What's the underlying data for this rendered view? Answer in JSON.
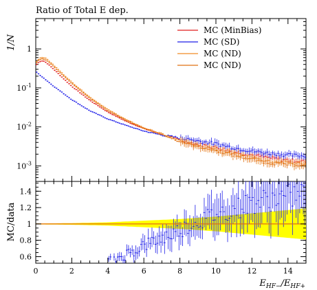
{
  "page": {
    "title": "Ratio of Total E dep."
  },
  "legend": {
    "position": "top-right",
    "entries": [
      {
        "label": "MC (MinBias)",
        "color": "#e01c1c"
      },
      {
        "label": "MC (SD)",
        "color": "#1c1ce8"
      },
      {
        "label": "MC (ND)",
        "color": "#f08a24"
      },
      {
        "label": "MC (ND)",
        "color": "#e07010"
      }
    ]
  },
  "chart_data": [
    {
      "type": "scatter",
      "title": "Ratio of Total E dep.",
      "ylabel": "1/N",
      "xlabel": "E_HF-/E_HF+",
      "y_scale": "log",
      "xlim": [
        0,
        15
      ],
      "ylim": [
        0.0004,
        6
      ],
      "yticks": [
        "10^-3",
        "10^-2",
        "10^-1",
        "1"
      ],
      "x_bin_width": 0.1,
      "x_range": [
        0.0,
        15.0
      ],
      "series": [
        {
          "name": "MC (MinBias)",
          "color": "#e01c1c",
          "points": [
            [
              0.05,
              0.4
            ],
            [
              0.2,
              0.47
            ],
            [
              0.4,
              0.5
            ],
            [
              0.6,
              0.44
            ],
            [
              1,
              0.3
            ],
            [
              1.5,
              0.18
            ],
            [
              2,
              0.11
            ],
            [
              3,
              0.048
            ],
            [
              4,
              0.024
            ],
            [
              5,
              0.014
            ],
            [
              6,
              0.009
            ],
            [
              7,
              0.0065
            ],
            [
              8,
              0.0046
            ],
            [
              9,
              0.0036
            ],
            [
              10,
              0.003
            ],
            [
              11,
              0.0023
            ],
            [
              12,
              0.0019
            ],
            [
              13,
              0.0016
            ],
            [
              14,
              0.0014
            ],
            [
              15,
              0.0013
            ]
          ]
        },
        {
          "name": "MC (SD)",
          "color": "#1c1ce8",
          "points": [
            [
              0.05,
              0.25
            ],
            [
              0.5,
              0.17
            ],
            [
              1,
              0.11
            ],
            [
              2,
              0.05
            ],
            [
              3,
              0.026
            ],
            [
              4,
              0.016
            ],
            [
              5,
              0.011
            ],
            [
              6,
              0.0078
            ],
            [
              7,
              0.0062
            ],
            [
              8,
              0.0052
            ],
            [
              9,
              0.0044
            ],
            [
              10,
              0.0037
            ],
            [
              11,
              0.0029
            ],
            [
              12,
              0.0024
            ],
            [
              13,
              0.0021
            ],
            [
              14,
              0.0019
            ],
            [
              15,
              0.0018
            ]
          ]
        },
        {
          "name": "MC (ND)",
          "color": "#f08a24",
          "points": [
            [
              0.05,
              0.48
            ],
            [
              0.2,
              0.58
            ],
            [
              0.4,
              0.61
            ],
            [
              0.6,
              0.56
            ],
            [
              1,
              0.38
            ],
            [
              1.5,
              0.23
            ],
            [
              2,
              0.14
            ],
            [
              3,
              0.058
            ],
            [
              4,
              0.028
            ],
            [
              5,
              0.0155
            ],
            [
              6,
              0.0095
            ],
            [
              7,
              0.0066
            ],
            [
              8,
              0.0044
            ],
            [
              9,
              0.0033
            ],
            [
              10,
              0.0026
            ],
            [
              11,
              0.002
            ],
            [
              12,
              0.0016
            ],
            [
              13,
              0.0013
            ],
            [
              14,
              0.0012
            ],
            [
              15,
              0.0011
            ]
          ]
        },
        {
          "name": "MC (ND)",
          "color": "#e07010",
          "points": [
            [
              0.05,
              0.44
            ],
            [
              0.2,
              0.53
            ],
            [
              0.4,
              0.56
            ],
            [
              0.6,
              0.51
            ],
            [
              1,
              0.35
            ],
            [
              1.5,
              0.21
            ],
            [
              2,
              0.13
            ],
            [
              3,
              0.054
            ],
            [
              4,
              0.026
            ],
            [
              5,
              0.0148
            ],
            [
              6,
              0.0092
            ],
            [
              7,
              0.0064
            ],
            [
              8,
              0.0043
            ],
            [
              9,
              0.0032
            ],
            [
              10,
              0.0025
            ],
            [
              11,
              0.0019
            ],
            [
              12,
              0.0015
            ],
            [
              13,
              0.0012
            ],
            [
              14,
              0.0011
            ],
            [
              15,
              0.00105
            ]
          ]
        }
      ]
    },
    {
      "type": "scatter",
      "ylabel": "MC/data",
      "xlabel": "E_HF-/E_HF+",
      "xlim": [
        0,
        15
      ],
      "ylim": [
        0.52,
        1.52
      ],
      "xticks": [
        "0",
        "2",
        "4",
        "6",
        "8",
        "10",
        "12",
        "14"
      ],
      "yticks": [
        "0.6",
        "0.8",
        "1",
        "1.2",
        "1.4"
      ],
      "band": {
        "color": "#ffff00",
        "center": 1.0,
        "half_width": [
          [
            0,
            0.005
          ],
          [
            2,
            0.01
          ],
          [
            4,
            0.02
          ],
          [
            6,
            0.04
          ],
          [
            8,
            0.06
          ],
          [
            10,
            0.09
          ],
          [
            12,
            0.13
          ],
          [
            14,
            0.17
          ],
          [
            15,
            0.19
          ]
        ]
      },
      "series": [
        {
          "name": "MC (MinBias)",
          "color": "#e01c1c",
          "points": [
            [
              0,
              1.0
            ],
            [
              15,
              1.0
            ]
          ]
        },
        {
          "name": "MC (SD)",
          "color": "#1c1ce8",
          "points": [
            [
              4.0,
              0.53
            ],
            [
              4.5,
              0.58
            ],
            [
              5,
              0.63
            ],
            [
              5.5,
              0.68
            ],
            [
              6,
              0.74
            ],
            [
              6.5,
              0.78
            ],
            [
              7,
              0.83
            ],
            [
              7.5,
              0.87
            ],
            [
              8,
              0.93
            ],
            [
              8.5,
              0.98
            ],
            [
              9,
              1.03
            ],
            [
              9.5,
              1.07
            ],
            [
              10,
              1.12
            ],
            [
              10.5,
              1.15
            ],
            [
              11,
              1.18
            ],
            [
              11.5,
              1.22
            ],
            [
              12,
              1.26
            ],
            [
              12.5,
              1.28
            ],
            [
              13,
              1.3
            ],
            [
              13.5,
              1.32
            ],
            [
              14,
              1.33
            ],
            [
              14.5,
              1.36
            ],
            [
              15,
              1.38
            ]
          ]
        },
        {
          "name": "MC (ND)",
          "color": "#f08a24",
          "points": [
            [
              0,
              1.0
            ],
            [
              15,
              1.0
            ]
          ]
        },
        {
          "name": "MC (ND)",
          "color": "#e07010",
          "points": [
            [
              0,
              1.0
            ],
            [
              15,
              1.0
            ]
          ]
        }
      ]
    }
  ]
}
